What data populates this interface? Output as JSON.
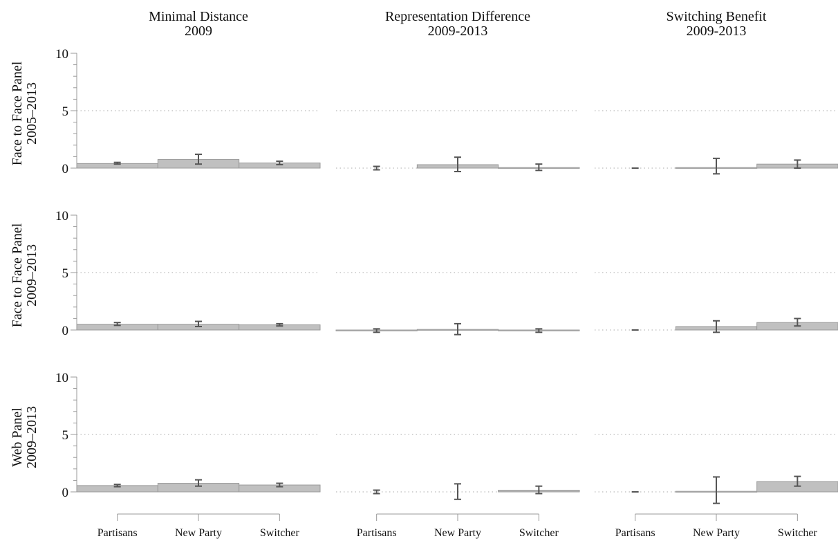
{
  "chart_data": {
    "type": "bar",
    "categories": [
      "Partisans",
      "New Party",
      "Switcher"
    ],
    "ylim": [
      0,
      10
    ],
    "yticks": [
      0,
      5,
      10
    ],
    "dotted_gridlines": [
      5,
      10
    ],
    "colors": {
      "bar": "#c0c0c0",
      "bar_edge": "#9a9a9a",
      "error_bar": "#555555",
      "axis": "#999999",
      "gridline": "#aaaaaa"
    },
    "columns": [
      {
        "title_lines": [
          "Minimal Distance",
          "2009"
        ]
      },
      {
        "title_lines": [
          "Representation Difference",
          "2009-2013"
        ]
      },
      {
        "title_lines": [
          "Switching Benefit",
          "2009-2013"
        ]
      }
    ],
    "rows": [
      {
        "label_lines": [
          "Face to Face Panel",
          "2005–2013"
        ]
      },
      {
        "label_lines": [
          "Face to Face Panel",
          "2009–2013"
        ]
      },
      {
        "label_lines": [
          "Web Panel",
          "2009–2013"
        ]
      }
    ],
    "panels": [
      [
        {
          "values": [
            0.4,
            0.75,
            0.45
          ],
          "err_low": [
            0.35,
            0.35,
            0.3
          ],
          "err_high": [
            0.5,
            1.2,
            0.6
          ]
        },
        {
          "values": [
            0.0,
            0.3,
            0.05
          ],
          "err_low": [
            -0.15,
            -0.3,
            -0.2
          ],
          "err_high": [
            0.15,
            0.95,
            0.35
          ]
        },
        {
          "values": [
            0.0,
            0.05,
            0.35
          ],
          "err_low": [
            0.0,
            -0.5,
            0.0
          ],
          "err_high": [
            0.0,
            0.85,
            0.7
          ]
        }
      ],
      [
        {
          "values": [
            0.5,
            0.5,
            0.45
          ],
          "err_low": [
            0.4,
            0.3,
            0.35
          ],
          "err_high": [
            0.65,
            0.75,
            0.55
          ]
        },
        {
          "values": [
            -0.05,
            0.05,
            -0.05
          ],
          "err_low": [
            -0.2,
            -0.4,
            -0.2
          ],
          "err_high": [
            0.1,
            0.55,
            0.1
          ]
        },
        {
          "values": [
            0.0,
            0.3,
            0.65
          ],
          "err_low": [
            0.0,
            -0.2,
            0.35
          ],
          "err_high": [
            0.0,
            0.8,
            1.0
          ]
        }
      ],
      [
        {
          "values": [
            0.55,
            0.75,
            0.6
          ],
          "err_low": [
            0.45,
            0.5,
            0.45
          ],
          "err_high": [
            0.65,
            1.05,
            0.75
          ]
        },
        {
          "values": [
            0.0,
            0.0,
            0.15
          ],
          "err_low": [
            -0.15,
            -0.65,
            -0.15
          ],
          "err_high": [
            0.15,
            0.7,
            0.5
          ]
        },
        {
          "values": [
            0.0,
            0.05,
            0.9
          ],
          "err_low": [
            0.0,
            -1.0,
            0.5
          ],
          "err_high": [
            0.0,
            1.3,
            1.35
          ]
        }
      ]
    ]
  }
}
